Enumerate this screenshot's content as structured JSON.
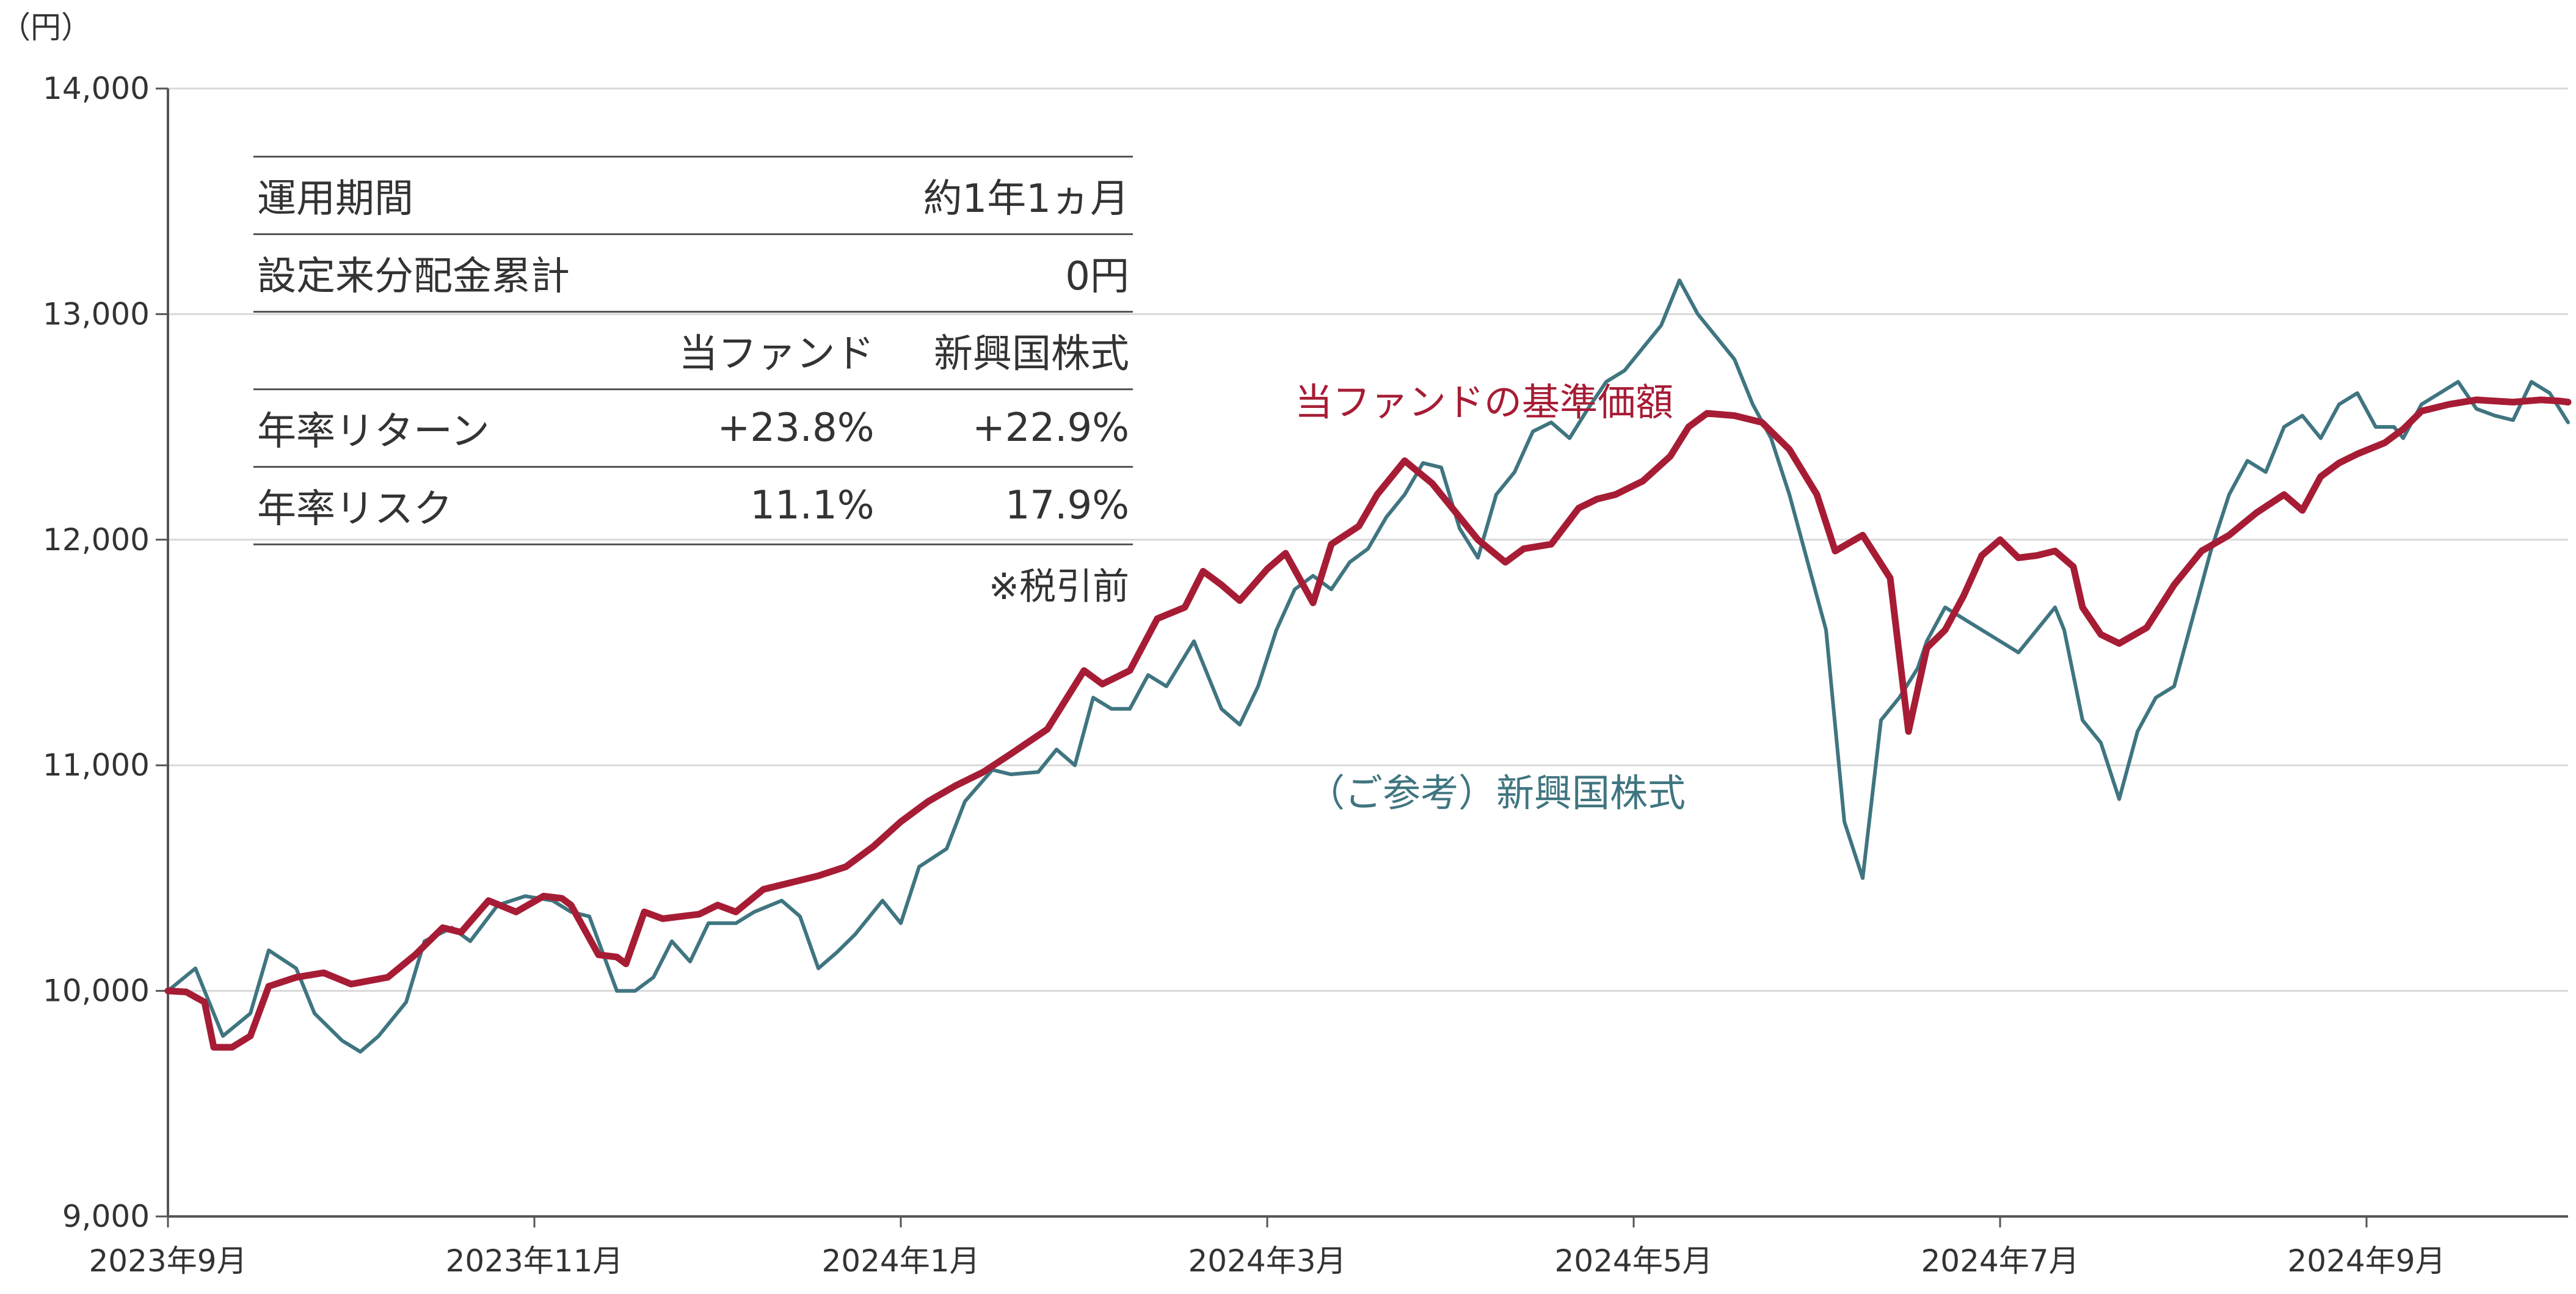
{
  "chart_data": {
    "type": "line",
    "unit_label": "（円）",
    "ylim": [
      9000,
      14000
    ],
    "y_ticks": [
      9000,
      10000,
      11000,
      12000,
      13000,
      14000
    ],
    "y_tick_labels": [
      "9,000",
      "10,000",
      "11,000",
      "12,000",
      "13,000",
      "14,000"
    ],
    "x_tick_labels": [
      "2023年9月",
      "2023年11月",
      "2024年1月",
      "2024年3月",
      "2024年5月",
      "2024年7月",
      "2024年9月"
    ],
    "x_tick_positions": [
      0,
      2,
      4,
      6,
      8,
      10,
      12
    ],
    "xlim": [
      0,
      13.1
    ],
    "grid": true,
    "colors": {
      "fund": "#a71c35",
      "benchmark": "#3f7580",
      "grid": "#d9d9d9",
      "axis": "#555555"
    },
    "series": [
      {
        "name": "当ファンドの基準価額",
        "key": "fund",
        "x": [
          0,
          0.1,
          0.2,
          0.25,
          0.35,
          0.45,
          0.55,
          0.7,
          0.85,
          1.0,
          1.2,
          1.35,
          1.5,
          1.6,
          1.75,
          1.9,
          2.05,
          2.15,
          2.2,
          2.35,
          2.45,
          2.5,
          2.6,
          2.7,
          2.8,
          2.9,
          3.0,
          3.1,
          3.25,
          3.4,
          3.55,
          3.7,
          3.85,
          4.0,
          4.15,
          4.3,
          4.45,
          4.6,
          4.8,
          5.0,
          5.1,
          5.25,
          5.4,
          5.55,
          5.65,
          5.75,
          5.85,
          6.0,
          6.1,
          6.25,
          6.35,
          6.5,
          6.6,
          6.75,
          6.9,
          7.0,
          7.15,
          7.3,
          7.4,
          7.55,
          7.7,
          7.8,
          7.9,
          8.05,
          8.2,
          8.3,
          8.4,
          8.55,
          8.7,
          8.85,
          9.0,
          9.1,
          9.25,
          9.4,
          9.5,
          9.6,
          9.7,
          9.8,
          9.9,
          10.0,
          10.1,
          10.2,
          10.3,
          10.4,
          10.45,
          10.55,
          10.65,
          10.8,
          10.95,
          11.1,
          11.25,
          11.4,
          11.55,
          11.65,
          11.75,
          11.85,
          11.95,
          12.1,
          12.2,
          12.3,
          12.45,
          12.6,
          12.8,
          12.95,
          13.05,
          13.1
        ],
        "values": [
          10000,
          9995,
          9950,
          9750,
          9750,
          9800,
          10020,
          10060,
          10080,
          10030,
          10060,
          10160,
          10280,
          10260,
          10400,
          10350,
          10420,
          10410,
          10380,
          10160,
          10150,
          10120,
          10350,
          10320,
          10330,
          10340,
          10380,
          10350,
          10450,
          10480,
          10510,
          10550,
          10640,
          10750,
          10840,
          10910,
          10970,
          11050,
          11160,
          11420,
          11360,
          11420,
          11650,
          11700,
          11860,
          11800,
          11730,
          11870,
          11940,
          11720,
          11980,
          12060,
          12200,
          12350,
          12250,
          12150,
          12000,
          11900,
          11960,
          11980,
          12140,
          12180,
          12200,
          12260,
          12370,
          12500,
          12560,
          12550,
          12520,
          12400,
          12200,
          11950,
          12020,
          11830,
          11150,
          11520,
          11600,
          11750,
          11930,
          12000,
          11920,
          11930,
          11950,
          11880,
          11700,
          11580,
          11540,
          11610,
          11800,
          11950,
          12020,
          12120,
          12200,
          12130,
          12280,
          12340,
          12380,
          12430,
          12490,
          12570,
          12600,
          12620,
          12610,
          12620,
          12615,
          12610
        ]
      },
      {
        "name": "（ご参考）新興国株式",
        "key": "benchmark",
        "x": [
          0,
          0.15,
          0.3,
          0.45,
          0.55,
          0.7,
          0.8,
          0.95,
          1.05,
          1.15,
          1.3,
          1.4,
          1.55,
          1.65,
          1.8,
          1.95,
          2.1,
          2.2,
          2.3,
          2.45,
          2.55,
          2.65,
          2.75,
          2.85,
          2.95,
          3.1,
          3.2,
          3.35,
          3.45,
          3.55,
          3.65,
          3.75,
          3.9,
          4.0,
          4.1,
          4.25,
          4.35,
          4.5,
          4.6,
          4.75,
          4.85,
          4.95,
          5.05,
          5.15,
          5.25,
          5.35,
          5.45,
          5.6,
          5.75,
          5.85,
          5.95,
          6.05,
          6.15,
          6.25,
          6.35,
          6.45,
          6.55,
          6.65,
          6.75,
          6.85,
          6.95,
          7.05,
          7.15,
          7.25,
          7.35,
          7.45,
          7.55,
          7.65,
          7.75,
          7.85,
          7.95,
          8.05,
          8.15,
          8.25,
          8.35,
          8.45,
          8.55,
          8.65,
          8.75,
          8.85,
          8.95,
          9.05,
          9.15,
          9.25,
          9.35,
          9.45,
          9.55,
          9.6,
          9.7,
          9.8,
          9.9,
          10.0,
          10.1,
          10.2,
          10.3,
          10.35,
          10.45,
          10.55,
          10.65,
          10.75,
          10.85,
          10.95,
          11.05,
          11.15,
          11.25,
          11.35,
          11.45,
          11.55,
          11.65,
          11.75,
          11.85,
          11.95,
          12.05,
          12.15,
          12.2,
          12.3,
          12.4,
          12.5,
          12.6,
          12.7,
          12.8,
          12.9,
          13.0,
          13.1
        ],
        "values": [
          10000,
          10100,
          9800,
          9900,
          10180,
          10100,
          9900,
          9780,
          9730,
          9800,
          9950,
          10220,
          10280,
          10220,
          10380,
          10420,
          10400,
          10350,
          10330,
          10000,
          10000,
          10060,
          10220,
          10130,
          10300,
          10300,
          10350,
          10400,
          10330,
          10100,
          10170,
          10250,
          10400,
          10300,
          10550,
          10630,
          10840,
          10980,
          10960,
          10970,
          11070,
          11000,
          11300,
          11250,
          11250,
          11400,
          11350,
          11550,
          11250,
          11180,
          11350,
          11600,
          11780,
          11840,
          11780,
          11900,
          11960,
          12100,
          12200,
          12340,
          12320,
          12050,
          11920,
          12200,
          12300,
          12480,
          12520,
          12450,
          12580,
          12700,
          12750,
          12850,
          12950,
          13150,
          13000,
          12900,
          12800,
          12600,
          12450,
          12200,
          11900,
          11600,
          10750,
          10500,
          11200,
          11300,
          11430,
          11550,
          11700,
          11650,
          11600,
          11550,
          11500,
          11600,
          11700,
          11600,
          11200,
          11100,
          10850,
          11150,
          11300,
          11350,
          11650,
          11950,
          12200,
          12350,
          12300,
          12500,
          12550,
          12450,
          12600,
          12650,
          12500,
          12500,
          12450,
          12600,
          12650,
          12700,
          12580,
          12550,
          12530,
          12700,
          12650,
          12520
        ]
      }
    ]
  },
  "stats_table": {
    "rows": [
      {
        "label": "運用期間",
        "value": "約1年1ヵ月"
      },
      {
        "label": "設定来分配金累計",
        "value": "0円"
      }
    ],
    "headers": [
      "当ファンド",
      "新興国株式"
    ],
    "return_row": {
      "label": "年率リターン",
      "fund": "+23.8%",
      "benchmark": "+22.9%"
    },
    "risk_row": {
      "label": "年率リスク",
      "fund": "11.1%",
      "benchmark": "17.9%"
    },
    "note": "※税引前"
  }
}
